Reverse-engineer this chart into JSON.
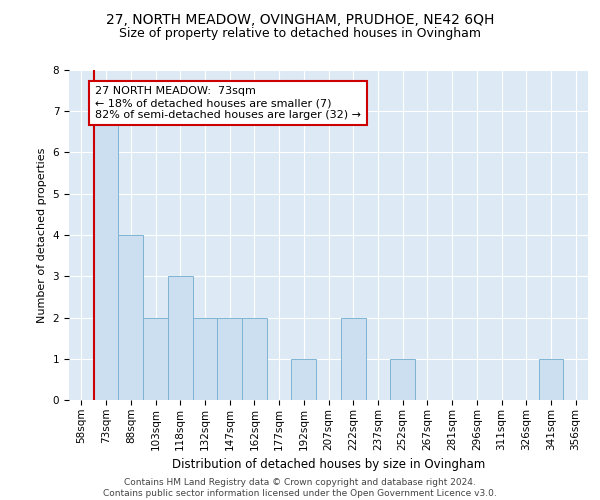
{
  "title1": "27, NORTH MEADOW, OVINGHAM, PRUDHOE, NE42 6QH",
  "title2": "Size of property relative to detached houses in Ovingham",
  "xlabel": "Distribution of detached houses by size in Ovingham",
  "ylabel": "Number of detached properties",
  "categories": [
    "58sqm",
    "73sqm",
    "88sqm",
    "103sqm",
    "118sqm",
    "132sqm",
    "147sqm",
    "162sqm",
    "177sqm",
    "192sqm",
    "207sqm",
    "222sqm",
    "237sqm",
    "252sqm",
    "267sqm",
    "281sqm",
    "296sqm",
    "311sqm",
    "326sqm",
    "341sqm",
    "356sqm"
  ],
  "values": [
    0,
    7,
    4,
    2,
    3,
    2,
    2,
    2,
    0,
    1,
    0,
    2,
    0,
    1,
    0,
    0,
    0,
    0,
    0,
    1,
    0
  ],
  "highlight_index": 1,
  "bar_color": "#ccdff0",
  "bar_edge_color": "#7fb3d3",
  "highlight_line_color": "#cc0000",
  "annotation_text": "27 NORTH MEADOW:  73sqm\n← 18% of detached houses are smaller (7)\n82% of semi-detached houses are larger (32) →",
  "annotation_box_color": "#ffffff",
  "annotation_box_edge": "#cc0000",
  "ylim": [
    0,
    8
  ],
  "yticks": [
    0,
    1,
    2,
    3,
    4,
    5,
    6,
    7,
    8
  ],
  "footer": "Contains HM Land Registry data © Crown copyright and database right 2024.\nContains public sector information licensed under the Open Government Licence v3.0.",
  "bg_color": "#ddeaf5",
  "grid_color": "#ffffff",
  "title1_fontsize": 10,
  "title2_fontsize": 9,
  "xlabel_fontsize": 8.5,
  "ylabel_fontsize": 8,
  "annotation_fontsize": 8,
  "footer_fontsize": 6.5,
  "tick_fontsize": 7.5
}
